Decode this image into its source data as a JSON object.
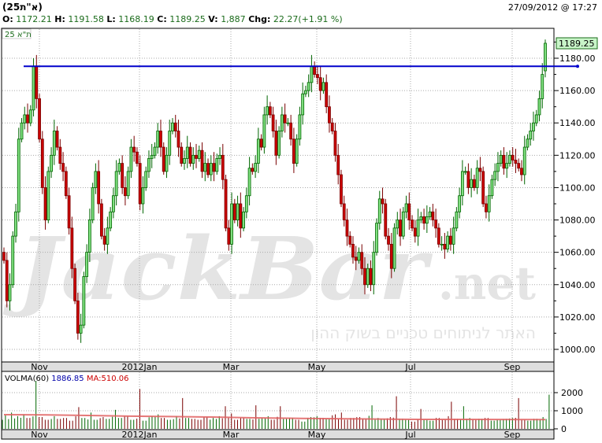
{
  "header": {
    "title": "(25א\"ת)",
    "datetime": "27/09/2012 @ 17:27",
    "stats": [
      {
        "label": "O:",
        "value": "1172.21"
      },
      {
        "label": "H:",
        "value": "1191.58"
      },
      {
        "label": "L:",
        "value": "1168.19"
      },
      {
        "label": "C:",
        "value": "1189.25"
      },
      {
        "label": "V:",
        "value": "1,887"
      },
      {
        "label": "Chg:",
        "value": "22.27(+1.91 %)"
      }
    ]
  },
  "watermark": {
    "brand": "JackBar.net",
    "tagline": "האתר לניתוחים טכניים בשוק ההון"
  },
  "colors": {
    "up": "#80e080",
    "up_border": "#006600",
    "down": "#cc0000",
    "down_border": "#7a0000",
    "resistance": "#0000cc",
    "ma": "#e06060",
    "price_tag": "#c8f5c8"
  },
  "chart_data": [
    {
      "type": "candlestick",
      "symbol_label": "25 ת\"א",
      "last_price_tag": "1189.25",
      "ylim": [
        990,
        1192
      ],
      "y_ticks": [
        "1180.00",
        "1160.00",
        "1140.00",
        "1120.00",
        "1100.00",
        "1080.00",
        "1060.00",
        "1040.00",
        "1020.00",
        "1000.00"
      ],
      "x_ticks": [
        "Nov",
        "2012Jan",
        "Mar",
        "May",
        "Jul",
        "Sep"
      ],
      "grid": true,
      "resistance_level": 1175,
      "closes": [
        1055,
        1030,
        1040,
        1070,
        1085,
        1130,
        1140,
        1145,
        1140,
        1148,
        1175,
        1155,
        1130,
        1100,
        1080,
        1110,
        1120,
        1135,
        1125,
        1115,
        1110,
        1095,
        1075,
        1050,
        1030,
        1010,
        1015,
        1045,
        1060,
        1080,
        1100,
        1110,
        1090,
        1070,
        1065,
        1075,
        1085,
        1095,
        1110,
        1115,
        1100,
        1095,
        1110,
        1125,
        1122,
        1115,
        1090,
        1100,
        1110,
        1118,
        1120,
        1125,
        1135,
        1125,
        1110,
        1120,
        1135,
        1140,
        1135,
        1125,
        1115,
        1118,
        1125,
        1115,
        1120,
        1118,
        1123,
        1110,
        1115,
        1108,
        1115,
        1110,
        1118,
        1120,
        1105,
        1075,
        1065,
        1090,
        1080,
        1090,
        1075,
        1085,
        1095,
        1112,
        1110,
        1115,
        1130,
        1125,
        1145,
        1150,
        1145,
        1135,
        1120,
        1135,
        1145,
        1140,
        1140,
        1130,
        1115,
        1130,
        1145,
        1158,
        1160,
        1165,
        1175,
        1170,
        1168,
        1160,
        1165,
        1150,
        1140,
        1135,
        1120,
        1108,
        1090,
        1080,
        1070,
        1065,
        1057,
        1055,
        1060,
        1050,
        1040,
        1050,
        1040,
        1060,
        1078,
        1093,
        1090,
        1070,
        1065,
        1050,
        1075,
        1080,
        1070,
        1085,
        1090,
        1080,
        1075,
        1070,
        1080,
        1082,
        1078,
        1082,
        1085,
        1080,
        1075,
        1065,
        1065,
        1062,
        1070,
        1065,
        1075,
        1085,
        1095,
        1110,
        1110,
        1100,
        1105,
        1100,
        1112,
        1110,
        1090,
        1085,
        1095,
        1105,
        1110,
        1115,
        1120,
        1112,
        1115,
        1120,
        1117,
        1115,
        1112,
        1108,
        1125,
        1130,
        1135,
        1140,
        1145,
        1155,
        1170
      ],
      "last_candle": {
        "open": 1172.21,
        "high": 1191.58,
        "low": 1168.19,
        "close": 1189.25
      }
    },
    {
      "type": "bar",
      "label": "VOLMA(60)",
      "volma_value": "1886.85",
      "ma_label": "MA:510.06",
      "ylim": [
        0,
        3100
      ],
      "y_ticks": [
        "2000",
        "1000",
        "0"
      ],
      "x_ticks": [
        "Nov",
        "2012Jan",
        "Mar",
        "May",
        "Jul",
        "Sep"
      ],
      "volumes": [
        750,
        900,
        700,
        800,
        600,
        2650,
        650,
        500,
        700,
        550,
        600,
        450,
        1200,
        600,
        900,
        500,
        650,
        550,
        1050,
        600,
        700,
        500,
        2200,
        450,
        700,
        800,
        600,
        500,
        700,
        1700,
        600,
        550,
        500,
        650,
        600,
        700,
        1250,
        850,
        500,
        600,
        550,
        1300,
        600,
        700,
        500,
        1250,
        550,
        600,
        500,
        400,
        650,
        700,
        600,
        550,
        800,
        900,
        500,
        600,
        650,
        550,
        1300,
        600,
        550,
        650,
        1800,
        550,
        500,
        400,
        1100,
        500,
        450,
        600,
        500,
        1500,
        550,
        1250,
        600,
        500,
        550,
        600,
        450,
        500,
        550,
        600,
        1700,
        500,
        450,
        550,
        650,
        1887
      ],
      "ma": [
        780,
        770,
        740,
        700,
        680,
        650,
        610,
        580,
        560,
        540,
        520,
        520,
        515,
        510
      ]
    }
  ]
}
